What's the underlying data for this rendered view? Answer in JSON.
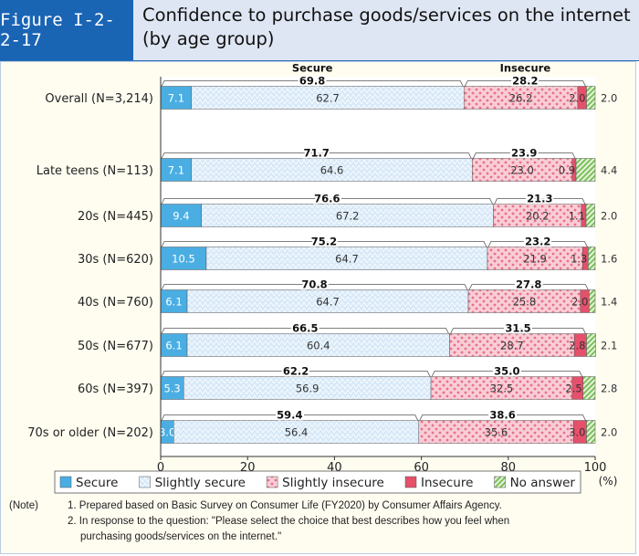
{
  "figure_label": "Figure I-2-2-17",
  "title": "Confidence to purchase goods/services on the internet (by age group)",
  "chart_data": {
    "type": "bar",
    "orientation": "horizontal",
    "stacked": true,
    "categories": [
      "Overall (N=3,214)",
      "Late teens (N=113)",
      "20s (N=445)",
      "30s (N=620)",
      "40s (N=760)",
      "50s (N=677)",
      "60s (N=397)",
      "70s or older (N=202)"
    ],
    "series": [
      {
        "name": "Secure",
        "values": [
          7.1,
          7.1,
          9.4,
          10.5,
          6.1,
          6.1,
          5.3,
          3.0
        ],
        "color": "#4aaee3"
      },
      {
        "name": "Slightly secure",
        "values": [
          62.7,
          64.6,
          67.2,
          64.7,
          64.7,
          60.4,
          56.9,
          56.4
        ],
        "color": "#d8e9f8"
      },
      {
        "name": "Slightly insecure",
        "values": [
          26.2,
          23.0,
          20.2,
          21.9,
          25.8,
          28.7,
          32.5,
          35.6
        ],
        "color": "#f7c9d3"
      },
      {
        "name": "Insecure",
        "values": [
          2.0,
          0.9,
          1.1,
          1.3,
          2.0,
          2.8,
          2.5,
          3.0
        ],
        "color": "#e5506b"
      },
      {
        "name": "No answer",
        "values": [
          2.0,
          4.4,
          2.0,
          1.6,
          1.4,
          2.1,
          2.8,
          2.0
        ],
        "color": "#a6d78c"
      }
    ],
    "secure_totals": [
      69.8,
      71.7,
      76.6,
      75.2,
      70.8,
      66.5,
      62.2,
      59.4
    ],
    "insecure_totals": [
      28.2,
      23.9,
      21.3,
      23.2,
      27.8,
      31.5,
      35.0,
      38.6
    ],
    "bracket_labels": {
      "secure": "Secure",
      "insecure": "Insecure"
    },
    "xlim": [
      0,
      100
    ],
    "xticks": [
      "0",
      "20",
      "40",
      "60",
      "80",
      "100"
    ],
    "xunit": "(%)",
    "legend": "bottom"
  },
  "notes": {
    "label": "(Note)",
    "items": [
      "1. Prepared based on Basic Survey on Consumer Life (FY2020) by Consumer Affairs Agency.",
      "2. In response to the question: \"Please select the choice that best describes how you feel when",
      "purchasing goods/services on the internet.\""
    ]
  }
}
